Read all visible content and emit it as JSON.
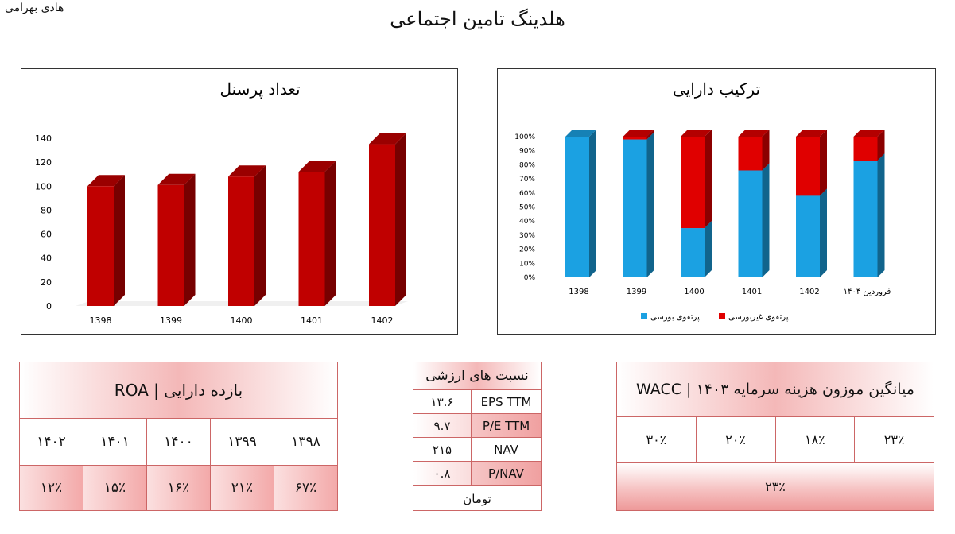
{
  "author": "هادی بهرامی",
  "title": "هلدینگ تامین اجتماعی",
  "chart_data": [
    {
      "type": "bar",
      "title": "تعداد پرسنل",
      "categories": [
        "1398",
        "1399",
        "1400",
        "1401",
        "1402"
      ],
      "values": [
        100,
        101,
        108,
        112,
        135
      ],
      "yticks": [
        "0",
        "20",
        "40",
        "60",
        "80",
        "100",
        "120",
        "140"
      ],
      "ylim": [
        0,
        140
      ],
      "colors": {
        "bar": "#c00000"
      }
    },
    {
      "type": "bar",
      "stacked": true,
      "percent": true,
      "title": "ترکیب دارایی",
      "categories": [
        "1398",
        "1399",
        "1400",
        "1401",
        "1402",
        "فروردین ۱۴۰۴"
      ],
      "series": [
        {
          "name": "پرتفوی بورسی",
          "color": "#1ba1e2",
          "values": [
            100,
            98,
            35,
            76,
            58,
            83
          ]
        },
        {
          "name": "پرتفوی غیربورسی",
          "color": "#e00000",
          "values": [
            0,
            2,
            65,
            24,
            42,
            17
          ]
        }
      ],
      "yticks": [
        "0%",
        "10%",
        "20%",
        "30%",
        "40%",
        "50%",
        "60%",
        "70%",
        "80%",
        "90%",
        "100%"
      ],
      "ylim": [
        0,
        100
      ],
      "legend": "bottom"
    }
  ],
  "roa": {
    "title": "بازده دارایی | ROA",
    "years": [
      "۱۳۹۸",
      "۱۳۹۹",
      "۱۴۰۰",
      "۱۴۰۱",
      "۱۴۰۲"
    ],
    "values": [
      "۶۷٪",
      "۲۱٪",
      "۱۶٪",
      "۱۵٪",
      "۱۲٪"
    ]
  },
  "valuation": {
    "title": "نسبت های ارزشی",
    "rows": [
      {
        "label": "EPS TTM",
        "value": "۱۳.۶"
      },
      {
        "label": "P/E TTM",
        "value": "۹.۷"
      },
      {
        "label": "NAV",
        "value": "۲۱۵"
      },
      {
        "label": "P/NAV",
        "value": "۰.۸"
      }
    ],
    "unit": "تومان"
  },
  "wacc": {
    "title": "میانگین موزون هزینه سرمایه ۱۴۰۳ | WACC",
    "rates": [
      "۲۳٪",
      "۱۸٪",
      "۲۰٪",
      "۳۰٪"
    ],
    "average": "۲۳٪"
  }
}
